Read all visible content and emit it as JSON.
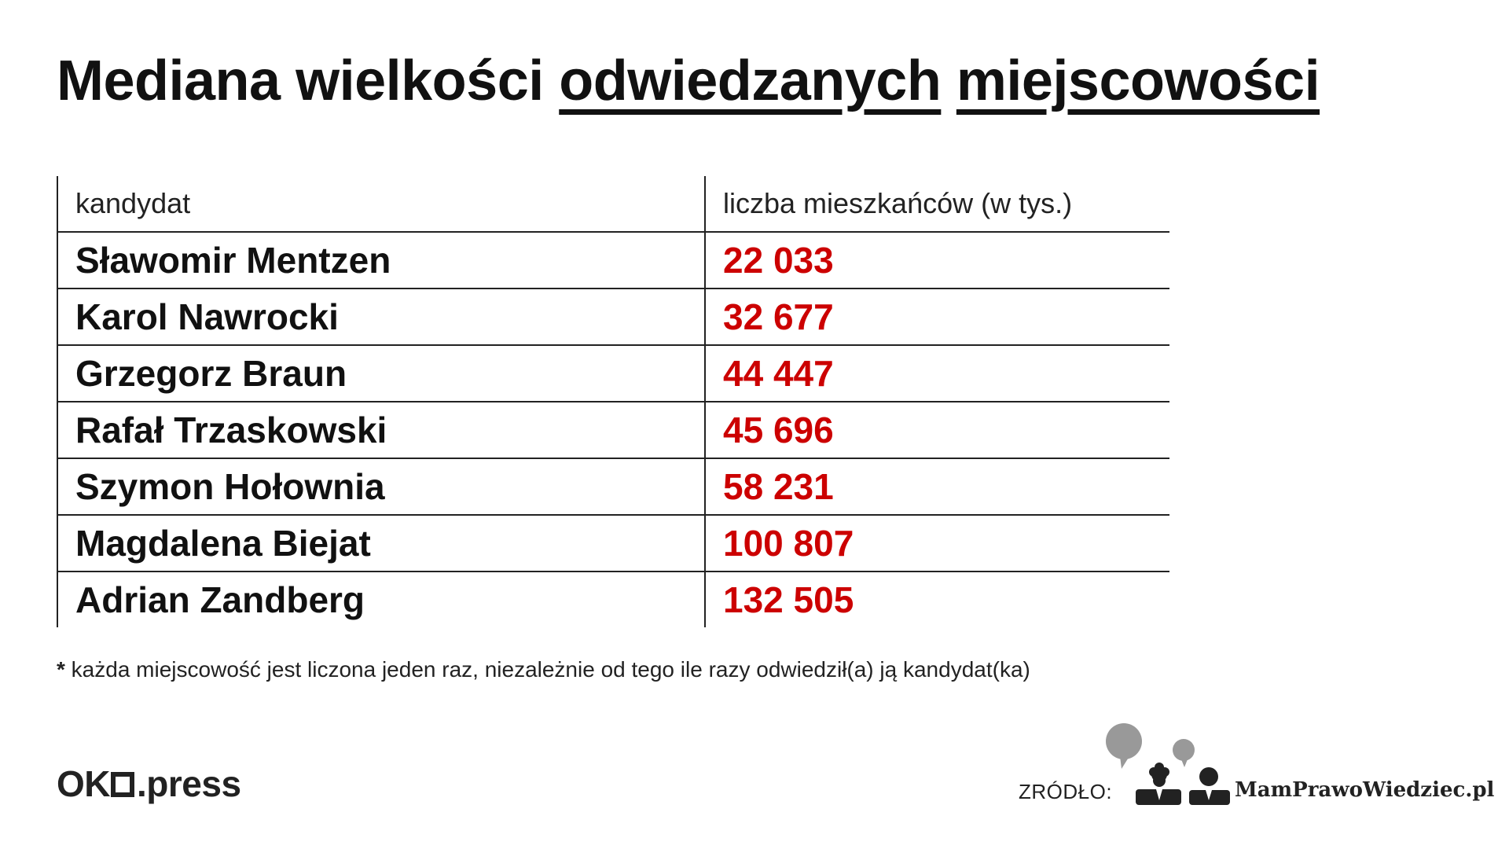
{
  "title": {
    "part1": "Mediana wielkości ",
    "part2": "odwiedzanych",
    "part3": " ",
    "part4": "miejscowości"
  },
  "chart_data": {
    "type": "table",
    "title": "Mediana wielkości odwiedzanych miejscowości",
    "columns": [
      "kandydat",
      "liczba mieszkańców (w tys.)"
    ],
    "rows": [
      {
        "name": "Sławomir Mentzen",
        "value": "22 033"
      },
      {
        "name": "Karol Nawrocki",
        "value": "32 677"
      },
      {
        "name": "Grzegorz Braun",
        "value": "44 447"
      },
      {
        "name": "Rafał Trzaskowski",
        "value": "45 696"
      },
      {
        "name": "Szymon Hołownia",
        "value": "58 231"
      },
      {
        "name": "Magdalena Biejat",
        "value": "100 807"
      },
      {
        "name": "Adrian Zandberg",
        "value": "132 505"
      }
    ],
    "value_color": "#cc0000"
  },
  "footnote": {
    "star": "*",
    "text": " każda miejscowość jest liczona jeden raz, niezależnie od tego ile razy odwiedził(a) ją kandydat(ka)"
  },
  "logo": {
    "left": "OK",
    "right": ".press"
  },
  "source": {
    "label": "ZRÓDŁO:",
    "brand": "MamPrawoWiedziec.pl",
    "icon": "people-speech-bubbles-icon"
  }
}
